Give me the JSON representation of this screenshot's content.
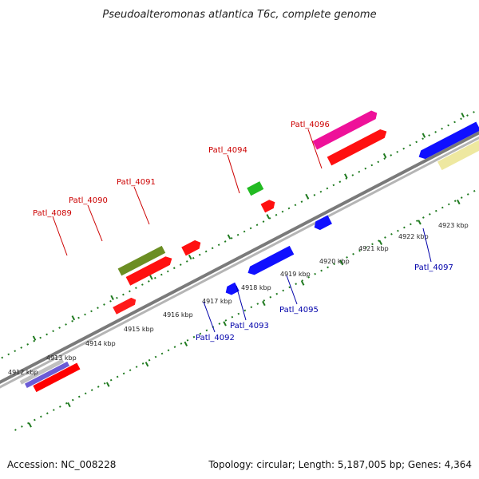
{
  "title": "Pseudoalteromonas atlantica T6c, complete genome",
  "footer": {
    "accession": "Accession: NC_008228",
    "summary": "Topology: circular; Length: 5,187,005 bp; Genes: 4,364"
  },
  "colors": {
    "forward_label": "#cc0000",
    "reverse_label": "#0000aa",
    "tick": "#1f7a1f",
    "backbone": "#808080"
  },
  "scale_ticks": [
    {
      "text": "4912 kbp"
    },
    {
      "text": "4913 kbp"
    },
    {
      "text": "4914 kbp"
    },
    {
      "text": "4915 kbp"
    },
    {
      "text": "4916 kbp"
    },
    {
      "text": "4917 kbp"
    },
    {
      "text": "4918 kbp"
    },
    {
      "text": "4919 kbp"
    },
    {
      "text": "4920 kbp"
    },
    {
      "text": "4921 kbp"
    },
    {
      "text": "4922 kbp"
    },
    {
      "text": "4923 kbp"
    }
  ],
  "gene_labels": [
    {
      "text": "Patl_4089",
      "strand": "forward"
    },
    {
      "text": "Patl_4090",
      "strand": "forward"
    },
    {
      "text": "Patl_4091",
      "strand": "forward"
    },
    {
      "text": "Patl_4094",
      "strand": "forward"
    },
    {
      "text": "Patl_4096",
      "strand": "forward"
    },
    {
      "text": "Patl_4092",
      "strand": "reverse"
    },
    {
      "text": "Patl_4093",
      "strand": "reverse"
    },
    {
      "text": "Patl_4095",
      "strand": "reverse"
    },
    {
      "text": "Patl_4097",
      "strand": "reverse"
    }
  ]
}
